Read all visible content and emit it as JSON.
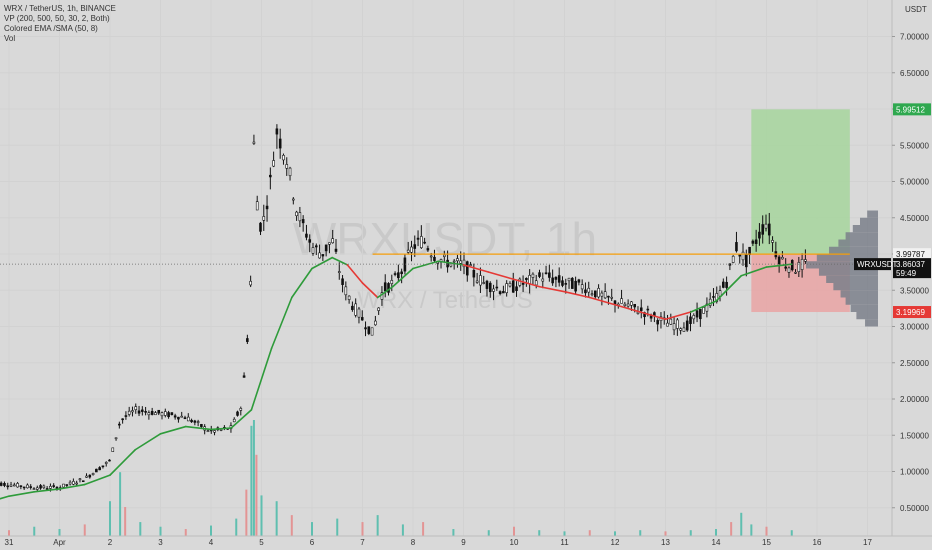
{
  "legend": {
    "line1": "WRX / TetherUS, 1h, BINANCE",
    "line2": "VP (200, 500, 50, 30, 2, Both)",
    "line3": "Colored EMA /SMA (50, 8)",
    "line4": "Vol"
  },
  "watermark": {
    "symbol": "WRXUSDT, 1h",
    "pair": "WRX / TetherUS"
  },
  "currency": "USDT",
  "chart_data": {
    "type": "candlestick",
    "title": "WRX / TetherUS, 1h, BINANCE",
    "ylim": [
      0.1,
      7.28
    ],
    "xlim": [
      30.65,
      17.9
    ],
    "y_ticks": [
      "0.50000",
      "1.00000",
      "1.50000",
      "2.00000",
      "2.50000",
      "3.00000",
      "3.50000",
      "4.00000",
      "4.50000",
      "5.00000",
      "5.50000",
      "6.00000",
      "6.50000",
      "7.00000"
    ],
    "x_ticks": [
      {
        "label": "31",
        "day": 31
      },
      {
        "label": "Apr",
        "day": 32
      },
      {
        "label": "2",
        "day": 33
      },
      {
        "label": "3",
        "day": 34
      },
      {
        "label": "4",
        "day": 35
      },
      {
        "label": "5",
        "day": 36
      },
      {
        "label": "6",
        "day": 37
      },
      {
        "label": "7",
        "day": 38
      },
      {
        "label": "8",
        "day": 39
      },
      {
        "label": "9",
        "day": 40
      },
      {
        "label": "10",
        "day": 41
      },
      {
        "label": "11",
        "day": 42
      },
      {
        "label": "12",
        "day": 43
      },
      {
        "label": "13",
        "day": 44
      },
      {
        "label": "14",
        "day": 45
      },
      {
        "label": "15",
        "day": 46
      },
      {
        "label": "16",
        "day": 47
      },
      {
        "label": "17",
        "day": 48
      }
    ],
    "price_path": [
      [
        30.6,
        0.85
      ],
      [
        31.0,
        0.82
      ],
      [
        31.5,
        0.78
      ],
      [
        32.0,
        0.78
      ],
      [
        32.5,
        0.9
      ],
      [
        33.0,
        1.15
      ],
      [
        33.2,
        1.7
      ],
      [
        33.5,
        1.85
      ],
      [
        34.0,
        1.8
      ],
      [
        34.5,
        1.75
      ],
      [
        35.0,
        1.55
      ],
      [
        35.4,
        1.6
      ],
      [
        35.6,
        1.9
      ],
      [
        35.7,
        2.6
      ],
      [
        35.8,
        3.8
      ],
      [
        35.85,
        5.5
      ],
      [
        35.9,
        4.8
      ],
      [
        36.0,
        4.3
      ],
      [
        36.2,
        5.1
      ],
      [
        36.3,
        5.7
      ],
      [
        36.5,
        5.3
      ],
      [
        36.7,
        4.6
      ],
      [
        37.0,
        4.1
      ],
      [
        37.2,
        4.0
      ],
      [
        37.4,
        4.2
      ],
      [
        37.6,
        3.6
      ],
      [
        37.8,
        3.3
      ],
      [
        38.0,
        3.1
      ],
      [
        38.2,
        2.9
      ],
      [
        38.4,
        3.5
      ],
      [
        38.6,
        3.6
      ],
      [
        38.8,
        3.8
      ],
      [
        39.0,
        4.1
      ],
      [
        39.2,
        4.2
      ],
      [
        39.4,
        4.0
      ],
      [
        39.6,
        3.9
      ],
      [
        40.0,
        3.85
      ],
      [
        40.4,
        3.6
      ],
      [
        40.8,
        3.5
      ],
      [
        41.2,
        3.6
      ],
      [
        41.6,
        3.7
      ],
      [
        42.0,
        3.6
      ],
      [
        42.4,
        3.55
      ],
      [
        42.8,
        3.4
      ],
      [
        43.2,
        3.3
      ],
      [
        43.6,
        3.2
      ],
      [
        44.0,
        3.05
      ],
      [
        44.4,
        3.0
      ],
      [
        44.8,
        3.25
      ],
      [
        45.0,
        3.4
      ],
      [
        45.2,
        3.6
      ],
      [
        45.4,
        4.1
      ],
      [
        45.6,
        3.9
      ],
      [
        45.8,
        4.2
      ],
      [
        46.0,
        4.45
      ],
      [
        46.2,
        4.0
      ],
      [
        46.4,
        3.85
      ],
      [
        46.6,
        3.8
      ],
      [
        46.75,
        3.86
      ]
    ],
    "ema_path": [
      [
        30.6,
        0.58
      ],
      [
        31.0,
        0.66
      ],
      [
        31.5,
        0.72
      ],
      [
        32.0,
        0.76
      ],
      [
        32.5,
        0.82
      ],
      [
        33.0,
        0.95
      ],
      [
        33.5,
        1.3
      ],
      [
        34.0,
        1.52
      ],
      [
        34.5,
        1.62
      ],
      [
        35.0,
        1.58
      ],
      [
        35.4,
        1.6
      ],
      [
        35.8,
        1.85
      ],
      [
        36.2,
        2.7
      ],
      [
        36.6,
        3.4
      ],
      [
        37.0,
        3.8
      ],
      [
        37.4,
        3.95
      ],
      [
        37.7,
        3.85
      ],
      [
        38.0,
        3.6
      ],
      [
        38.3,
        3.4
      ],
      [
        38.6,
        3.55
      ],
      [
        39.0,
        3.8
      ],
      [
        39.5,
        3.9
      ],
      [
        40.0,
        3.85
      ],
      [
        40.5,
        3.75
      ],
      [
        41.0,
        3.65
      ],
      [
        41.5,
        3.55
      ],
      [
        42.0,
        3.48
      ],
      [
        42.5,
        3.4
      ],
      [
        43.0,
        3.3
      ],
      [
        43.5,
        3.2
      ],
      [
        44.0,
        3.1
      ],
      [
        44.5,
        3.2
      ],
      [
        45.0,
        3.35
      ],
      [
        45.5,
        3.7
      ],
      [
        46.0,
        3.82
      ],
      [
        46.5,
        3.86
      ]
    ],
    "ema_red_segments": [
      [
        37.7,
        38.3
      ],
      [
        39.9,
        44.5
      ]
    ],
    "volume": [
      {
        "day": 31.0,
        "v": 0.05
      },
      {
        "day": 31.5,
        "v": 0.08
      },
      {
        "day": 32.0,
        "v": 0.06
      },
      {
        "day": 32.5,
        "v": 0.1
      },
      {
        "day": 33.0,
        "v": 0.3
      },
      {
        "day": 33.2,
        "v": 0.55
      },
      {
        "day": 33.3,
        "v": 0.25
      },
      {
        "day": 33.6,
        "v": 0.12
      },
      {
        "day": 34.0,
        "v": 0.08
      },
      {
        "day": 34.5,
        "v": 0.06
      },
      {
        "day": 35.0,
        "v": 0.09
      },
      {
        "day": 35.5,
        "v": 0.15
      },
      {
        "day": 35.7,
        "v": 0.4
      },
      {
        "day": 35.8,
        "v": 0.95
      },
      {
        "day": 35.85,
        "v": 1.0
      },
      {
        "day": 35.9,
        "v": 0.7
      },
      {
        "day": 36.0,
        "v": 0.35
      },
      {
        "day": 36.3,
        "v": 0.3
      },
      {
        "day": 36.6,
        "v": 0.18
      },
      {
        "day": 37.0,
        "v": 0.12
      },
      {
        "day": 37.5,
        "v": 0.15
      },
      {
        "day": 38.0,
        "v": 0.12
      },
      {
        "day": 38.3,
        "v": 0.18
      },
      {
        "day": 38.8,
        "v": 0.1
      },
      {
        "day": 39.2,
        "v": 0.12
      },
      {
        "day": 39.8,
        "v": 0.06
      },
      {
        "day": 40.5,
        "v": 0.05
      },
      {
        "day": 41.0,
        "v": 0.08
      },
      {
        "day": 41.5,
        "v": 0.05
      },
      {
        "day": 42.0,
        "v": 0.04
      },
      {
        "day": 42.5,
        "v": 0.05
      },
      {
        "day": 43.0,
        "v": 0.04
      },
      {
        "day": 43.5,
        "v": 0.05
      },
      {
        "day": 44.0,
        "v": 0.04
      },
      {
        "day": 44.5,
        "v": 0.05
      },
      {
        "day": 45.0,
        "v": 0.06
      },
      {
        "day": 45.3,
        "v": 0.12
      },
      {
        "day": 45.5,
        "v": 0.2
      },
      {
        "day": 45.7,
        "v": 0.1
      },
      {
        "day": 46.0,
        "v": 0.08
      },
      {
        "day": 46.5,
        "v": 0.05
      }
    ],
    "volume_profile": [
      {
        "price": 3.05,
        "w": 0.18
      },
      {
        "price": 3.15,
        "w": 0.3
      },
      {
        "price": 3.25,
        "w": 0.38
      },
      {
        "price": 3.35,
        "w": 0.45
      },
      {
        "price": 3.45,
        "w": 0.52
      },
      {
        "price": 3.55,
        "w": 0.62
      },
      {
        "price": 3.65,
        "w": 0.72
      },
      {
        "price": 3.75,
        "w": 0.82
      },
      {
        "price": 3.85,
        "w": 1.0
      },
      {
        "price": 3.95,
        "w": 0.85
      },
      {
        "price": 4.05,
        "w": 0.68
      },
      {
        "price": 4.15,
        "w": 0.55
      },
      {
        "price": 4.25,
        "w": 0.45
      },
      {
        "price": 4.35,
        "w": 0.35
      },
      {
        "price": 4.45,
        "w": 0.25
      },
      {
        "price": 4.55,
        "w": 0.15
      }
    ],
    "position": {
      "entry": 3.99787,
      "target": 5.99512,
      "stop": 3.19969,
      "start_day": 45.7,
      "end_day": 47.65
    },
    "horizontal_line": 3.99787,
    "last_price": 3.86037,
    "tags": {
      "target": "5.99512",
      "entry": "3.99787",
      "stop": "3.19969",
      "price": "3.86037",
      "countdown": "59:49",
      "symbol": "WRXUSDT"
    }
  },
  "colors": {
    "background": "#d9d9d9",
    "candle": "#111111",
    "ema_green": "#2e9b3a",
    "ema_red": "#e53935",
    "entry_line": "#f59e0b",
    "target_zone": "#a8d5a0",
    "stop_zone": "#e8a6a6",
    "vol_up": "#5fbfb0",
    "vol_down": "#e39494",
    "profile": "#7a7f8a",
    "target_tag": "#2fa84f",
    "stop_tag": "#e53935",
    "price_tag": "#111111"
  }
}
